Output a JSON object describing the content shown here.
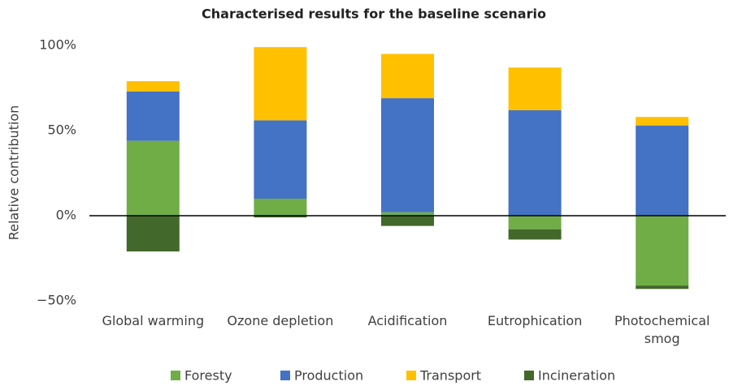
{
  "chart_data": {
    "type": "stacked_bar",
    "title": "Characterised results for the baseline scenario",
    "y_label": "Relative contribution",
    "categories": [
      "Global warming",
      "Ozone depletion",
      "Acidification",
      "Eutrophication",
      "Photochemical smog"
    ],
    "series": [
      {
        "name": "Foresty",
        "color": "#70ad47",
        "values": [
          44,
          10,
          2,
          -8,
          -41
        ]
      },
      {
        "name": "Production",
        "color": "#4472c4",
        "values": [
          29,
          46,
          67,
          62,
          53
        ]
      },
      {
        "name": "Transport",
        "color": "#ffc000",
        "values": [
          6,
          43,
          26,
          25,
          5
        ]
      },
      {
        "name": "Incineration",
        "color": "#43682b",
        "values": [
          -21,
          -1,
          -6,
          -6,
          -2
        ]
      }
    ],
    "ylim": [
      -50,
      100
    ],
    "yticks": [
      {
        "value": -50,
        "label": "−50%"
      },
      {
        "value": 0,
        "label": "0%"
      },
      {
        "value": 50,
        "label": "50%"
      },
      {
        "value": 100,
        "label": "100%"
      }
    ],
    "grid": false,
    "legend": "bottom"
  }
}
